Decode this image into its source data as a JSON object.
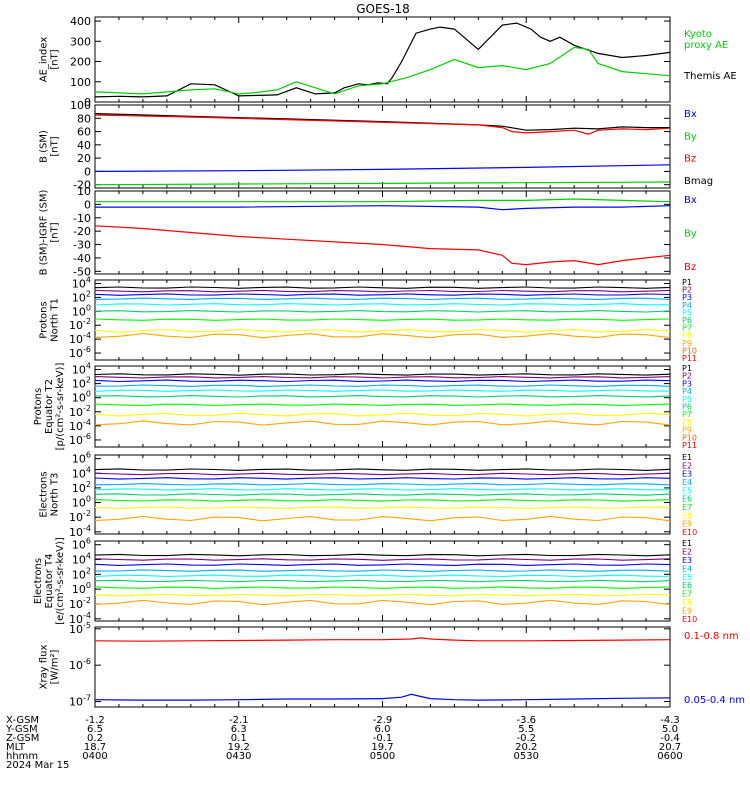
{
  "title": "GOES-18",
  "colors": {
    "axis": "#000000",
    "black": "#000000",
    "green": "#00d000",
    "blue": "#0000ff",
    "red": "#ff0000",
    "P": [
      "#000000",
      "#800080",
      "#0000ff",
      "#00aaff",
      "#00ffff",
      "#00d070",
      "#00ff00",
      "#ffff00",
      "#ffa500",
      "#ff6000",
      "#ff0000"
    ],
    "E": [
      "#000000",
      "#800080",
      "#0000ff",
      "#00aaff",
      "#00ffff",
      "#00d070",
      "#00ff00",
      "#ffff00",
      "#ffa500",
      "#ff0000"
    ]
  },
  "footer": {
    "labels": [
      "X-GSM",
      "Y-GSM",
      "Z-GSM",
      "MLT",
      "hhmm",
      "2024 Mar 15"
    ],
    "columns": [
      [
        "-1.2",
        "6.5",
        "0.2",
        "18.7",
        "0400"
      ],
      [
        "-2.1",
        "6.3",
        "0.1",
        "19.2",
        "0430"
      ],
      [
        "-2.9",
        "6.0",
        "-0.1",
        "19.7",
        "0500"
      ],
      [
        "-3.6",
        "5.5",
        "-0.2",
        "20.2",
        "0530"
      ],
      [
        "-4.3",
        "5.0",
        "-0.4",
        "20.7",
        "0600"
      ]
    ]
  },
  "chart_data": [
    {
      "id": "ae",
      "type": "line",
      "ylabel": [
        "AE_index",
        "[nT]"
      ],
      "ylim": [
        0,
        420
      ],
      "yticks": [
        0,
        100,
        200,
        300,
        400
      ],
      "x_range": [
        "0400",
        "0600"
      ],
      "legend": [
        {
          "text": "Kyoto",
          "color": "green"
        },
        {
          "text": "proxy AE",
          "color": "green"
        },
        {
          "text": "Themis AE",
          "color": "black"
        }
      ],
      "series": [
        {
          "name": "Themis AE",
          "color": "black",
          "x": [
            0,
            5,
            10,
            15,
            20,
            25,
            30,
            33,
            38,
            42,
            46,
            50,
            52,
            55,
            57,
            59,
            61,
            62,
            64,
            67,
            70,
            72,
            75,
            80,
            85,
            88,
            91,
            93,
            95,
            97,
            100,
            105,
            110,
            115,
            120
          ],
          "y": [
            25,
            28,
            25,
            30,
            90,
            85,
            30,
            32,
            35,
            70,
            40,
            45,
            70,
            90,
            85,
            95,
            90,
            120,
            200,
            340,
            360,
            370,
            360,
            260,
            380,
            390,
            360,
            320,
            300,
            320,
            280,
            240,
            220,
            230,
            245
          ]
        },
        {
          "name": "Kyoto proxy AE",
          "color": "green",
          "x": [
            0,
            5,
            10,
            15,
            20,
            25,
            30,
            33,
            38,
            42,
            46,
            50,
            55,
            60,
            65,
            70,
            75,
            80,
            85,
            90,
            95,
            100,
            103,
            105,
            110,
            115,
            120
          ],
          "y": [
            50,
            45,
            40,
            50,
            60,
            65,
            40,
            45,
            60,
            100,
            70,
            40,
            80,
            90,
            120,
            160,
            210,
            170,
            180,
            160,
            190,
            270,
            260,
            190,
            150,
            140,
            130
          ]
        }
      ]
    },
    {
      "id": "bsm",
      "type": "line",
      "ylabel": [
        "B (SM)",
        "[nT]"
      ],
      "ylim": [
        -25,
        100
      ],
      "yticks": [
        -20,
        0,
        20,
        40,
        60,
        80,
        100
      ],
      "legend": [
        {
          "text": "Bx",
          "color": "blue"
        },
        {
          "text": "By",
          "color": "green"
        },
        {
          "text": "Bz",
          "color": "red"
        },
        {
          "text": "Bmag",
          "color": "black"
        }
      ],
      "series": [
        {
          "name": "Bmag",
          "color": "black",
          "x": [
            0,
            20,
            40,
            60,
            80,
            85,
            90,
            95,
            100,
            105,
            110,
            115,
            120
          ],
          "y": [
            87,
            83,
            79,
            75,
            70,
            68,
            62,
            63,
            65,
            64,
            67,
            66,
            66
          ]
        },
        {
          "name": "Bz",
          "color": "red",
          "x": [
            0,
            20,
            40,
            60,
            80,
            85,
            87,
            90,
            95,
            100,
            103,
            105,
            110,
            115,
            120
          ],
          "y": [
            85,
            82,
            78,
            74,
            70,
            66,
            60,
            58,
            60,
            62,
            56,
            62,
            64,
            63,
            65
          ]
        },
        {
          "name": "Bx",
          "color": "blue",
          "x": [
            0,
            30,
            60,
            90,
            120
          ],
          "y": [
            0,
            1,
            3,
            6,
            10
          ]
        },
        {
          "name": "By",
          "color": "green",
          "x": [
            0,
            30,
            60,
            90,
            120
          ],
          "y": [
            -20,
            -19,
            -18,
            -17,
            -16
          ]
        }
      ]
    },
    {
      "id": "bigrf",
      "type": "line",
      "ylabel": [
        "B (SM)-IGRF (SM)",
        "[nT]"
      ],
      "ylim": [
        -52,
        10
      ],
      "yticks": [
        -50,
        -40,
        -30,
        -20,
        -10,
        0,
        10
      ],
      "legend": [
        {
          "text": "Bx",
          "color": "blue"
        },
        {
          "text": "By",
          "color": "green"
        },
        {
          "text": "Bz",
          "color": "red"
        }
      ],
      "series": [
        {
          "name": "By",
          "color": "green",
          "x": [
            0,
            30,
            60,
            80,
            90,
            100,
            110,
            120
          ],
          "y": [
            2,
            2,
            2,
            3,
            3,
            4,
            3,
            2
          ]
        },
        {
          "name": "Bx",
          "color": "blue",
          "x": [
            0,
            30,
            60,
            80,
            85,
            90,
            100,
            110,
            120
          ],
          "y": [
            -2,
            -2,
            -1,
            -2,
            -4,
            -3,
            -2,
            -2,
            -1
          ]
        },
        {
          "name": "Bz",
          "color": "red",
          "x": [
            0,
            10,
            20,
            30,
            40,
            50,
            60,
            70,
            80,
            85,
            87,
            90,
            95,
            100,
            105,
            110,
            115,
            120
          ],
          "y": [
            -16,
            -18,
            -21,
            -24,
            -26,
            -28,
            -30,
            -33,
            -34,
            -38,
            -44,
            -45,
            -43,
            -42,
            -45,
            -42,
            -40,
            -38
          ]
        }
      ]
    },
    {
      "id": "p_north",
      "type": "line",
      "yscale": "log",
      "ylabel": [
        "Protons",
        "North T1"
      ],
      "ylim": [
        -7,
        4.5
      ],
      "ytick_exps": [
        -6,
        -4,
        -2,
        0,
        2,
        4
      ],
      "legend_prefix": "P",
      "legend_palette": "P",
      "legend_count": 11,
      "channels": [
        {
          "name": "P1",
          "base": 3.4,
          "amp": 0.1
        },
        {
          "name": "P2",
          "base": 2.9,
          "amp": 0.1
        },
        {
          "name": "P3",
          "base": 2.4,
          "amp": 0.1
        },
        {
          "name": "P4",
          "base": 1.8,
          "amp": 0.1
        },
        {
          "name": "P5",
          "base": 1.0,
          "amp": 0.1
        },
        {
          "name": "P6",
          "base": 0.0,
          "amp": 0.1
        },
        {
          "name": "P7",
          "base": -1.2,
          "amp": 0.1
        },
        {
          "name": "P8",
          "base": -2.8,
          "amp": 0.2
        },
        {
          "name": "P9",
          "base": -3.5,
          "amp": 0.3
        }
      ]
    },
    {
      "id": "p_equator",
      "type": "line",
      "yscale": "log",
      "ylabel": [
        "Protons",
        "Equator T2",
        "[p/(cm²-s-sr-keV)]"
      ],
      "ylim": [
        -7,
        4.5
      ],
      "ytick_exps": [
        -6,
        -4,
        -2,
        0,
        2,
        4
      ],
      "legend_prefix": "P",
      "legend_palette": "P",
      "legend_count": 11,
      "channels": [
        {
          "name": "P1",
          "base": 3.3,
          "amp": 0.1
        },
        {
          "name": "P2",
          "base": 2.9,
          "amp": 0.1
        },
        {
          "name": "P3",
          "base": 2.4,
          "amp": 0.1
        },
        {
          "name": "P4",
          "base": 1.7,
          "amp": 0.1
        },
        {
          "name": "P5",
          "base": 1.0,
          "amp": 0.1
        },
        {
          "name": "P6",
          "base": 0.2,
          "amp": 0.1
        },
        {
          "name": "P7",
          "base": -1.0,
          "amp": 0.1
        },
        {
          "name": "P8",
          "base": -2.4,
          "amp": 0.2
        },
        {
          "name": "P9",
          "base": -3.6,
          "amp": 0.3
        }
      ]
    },
    {
      "id": "e_north",
      "type": "line",
      "yscale": "log",
      "ylabel": [
        "Electrons",
        "North T3"
      ],
      "ylim": [
        -4.3,
        6.5
      ],
      "ytick_exps": [
        -4,
        -2,
        0,
        2,
        4,
        6
      ],
      "legend_prefix": "E",
      "legend_palette": "E",
      "legend_count": 10,
      "channels": [
        {
          "name": "E1",
          "base": 4.5,
          "amp": 0.1
        },
        {
          "name": "E2",
          "base": 3.9,
          "amp": 0.1
        },
        {
          "name": "E3",
          "base": 3.3,
          "amp": 0.1
        },
        {
          "name": "E4",
          "base": 2.5,
          "amp": 0.1
        },
        {
          "name": "E5",
          "base": 1.8,
          "amp": 0.1
        },
        {
          "name": "E6",
          "base": 1.1,
          "amp": 0.1
        },
        {
          "name": "E7",
          "base": 0.3,
          "amp": 0.1
        },
        {
          "name": "E8",
          "base": -0.7,
          "amp": 0.1
        },
        {
          "name": "E9",
          "base": -2.2,
          "amp": 0.3
        }
      ]
    },
    {
      "id": "e_equator",
      "type": "line",
      "yscale": "log",
      "ylabel": [
        "Electrons",
        "Equator T4",
        "[e/(cm²-s-sr-keV)]"
      ],
      "ylim": [
        -4.3,
        6.5
      ],
      "ytick_exps": [
        -4,
        -2,
        0,
        2,
        4,
        6
      ],
      "legend_prefix": "E",
      "legend_palette": "E",
      "legend_count": 10,
      "channels": [
        {
          "name": "E1",
          "base": 4.6,
          "amp": 0.1
        },
        {
          "name": "E2",
          "base": 4.0,
          "amp": 0.1
        },
        {
          "name": "E3",
          "base": 3.3,
          "amp": 0.1
        },
        {
          "name": "E4",
          "base": 2.5,
          "amp": 0.1
        },
        {
          "name": "E5",
          "base": 1.8,
          "amp": 0.1
        },
        {
          "name": "E6",
          "base": 1.1,
          "amp": 0.1
        },
        {
          "name": "E7",
          "base": 0.2,
          "amp": 0.1
        },
        {
          "name": "E8",
          "base": -0.8,
          "amp": 0.1
        },
        {
          "name": "E9",
          "base": -1.8,
          "amp": 0.3
        }
      ]
    },
    {
      "id": "xray",
      "type": "line",
      "yscale": "log",
      "ylabel": [
        "Xray flux",
        "[W/m²]"
      ],
      "ylim": [
        -7.15,
        -4.95
      ],
      "ytick_exps": [
        -7,
        -6,
        -5
      ],
      "legend": [
        {
          "text": "0.1-0.8 nm",
          "color": "red"
        },
        {
          "text": "0.05-0.4 nm",
          "color": "blue"
        }
      ],
      "series": [
        {
          "name": "0.1-0.8 nm",
          "color": "red",
          "x": [
            0,
            10,
            20,
            30,
            40,
            50,
            60,
            66,
            68,
            70,
            75,
            80,
            90,
            100,
            110,
            120
          ],
          "y": [
            -5.33,
            -5.34,
            -5.33,
            -5.32,
            -5.31,
            -5.3,
            -5.3,
            -5.28,
            -5.25,
            -5.28,
            -5.31,
            -5.33,
            -5.33,
            -5.32,
            -5.31,
            -5.3
          ]
        },
        {
          "name": "0.05-0.4 nm",
          "color": "blue",
          "x": [
            0,
            10,
            20,
            30,
            40,
            50,
            60,
            64,
            66,
            68,
            70,
            75,
            80,
            90,
            100,
            110,
            120
          ],
          "y": [
            -6.95,
            -6.96,
            -6.96,
            -6.95,
            -6.93,
            -6.93,
            -6.92,
            -6.88,
            -6.8,
            -6.86,
            -6.92,
            -6.95,
            -6.96,
            -6.95,
            -6.93,
            -6.91,
            -6.9
          ]
        }
      ]
    }
  ]
}
